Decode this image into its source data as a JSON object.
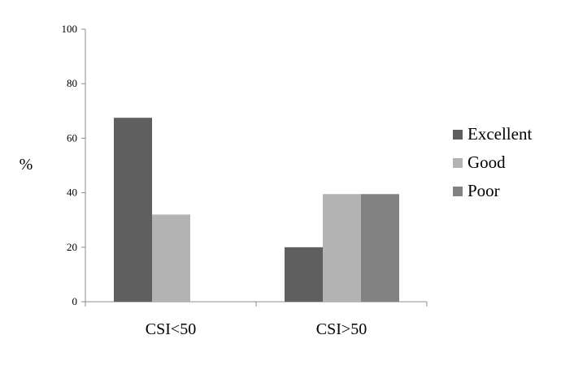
{
  "chart_data": {
    "type": "bar",
    "categories": [
      "CSI<50",
      "CSI>50"
    ],
    "series": [
      {
        "name": "Excellent",
        "values": [
          67.5,
          20
        ],
        "color": "#5f5f5f"
      },
      {
        "name": "Good",
        "values": [
          32,
          39.5
        ],
        "color": "#b3b3b3"
      },
      {
        "name": "Poor",
        "values": [
          0,
          39.5
        ],
        "color": "#818181"
      }
    ],
    "ylabel": "%",
    "ylim": [
      0,
      100
    ],
    "yticks": [
      0,
      20,
      40,
      60,
      80,
      100
    ],
    "grid": false,
    "legend_position": "right"
  }
}
